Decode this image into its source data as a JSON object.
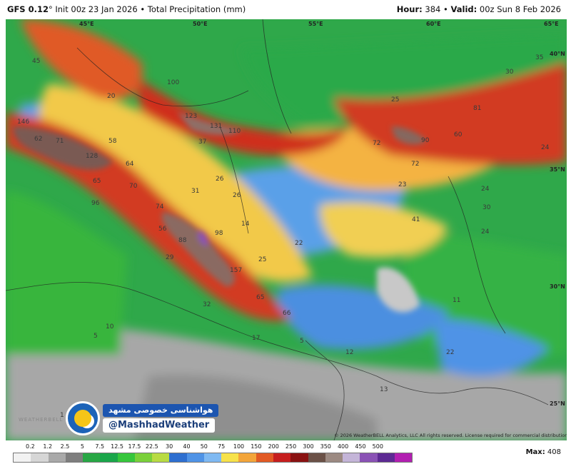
{
  "header": {
    "model": "GFS 0.12",
    "model_deg": "°",
    "init": "Init 00z 23 Jan 2026",
    "sep": "•",
    "product": "Total Precipitation (mm)",
    "hour_label": "Hour:",
    "hour_value": "384",
    "valid_label": "Valid:",
    "valid_value": "00z Sun 8 Feb 2026"
  },
  "coords": {
    "lon45": "45°E",
    "lon50": "50°E",
    "lon55": "55°E",
    "lon60": "60°E",
    "lon65": "65°E",
    "lat40": "40°N",
    "lat35": "35°N",
    "lat30": "30°N",
    "lat25": "25°N"
  },
  "map_values": [
    {
      "v": "100"
    },
    {
      "v": "123"
    },
    {
      "v": "131"
    },
    {
      "v": "110"
    },
    {
      "v": "146"
    },
    {
      "v": "128"
    },
    {
      "v": "157"
    },
    {
      "v": "98"
    },
    {
      "v": "88"
    },
    {
      "v": "90"
    },
    {
      "v": "81"
    },
    {
      "v": "72"
    },
    {
      "v": "72"
    },
    {
      "v": "60"
    },
    {
      "v": "96"
    },
    {
      "v": "74"
    },
    {
      "v": "70"
    },
    {
      "v": "65"
    },
    {
      "v": "64"
    },
    {
      "v": "71"
    },
    {
      "v": "62"
    },
    {
      "v": "58"
    },
    {
      "v": "65"
    },
    {
      "v": "66"
    },
    {
      "v": "56"
    },
    {
      "v": "45"
    },
    {
      "v": "41"
    },
    {
      "v": "30"
    },
    {
      "v": "24"
    },
    {
      "v": "24"
    },
    {
      "v": "24"
    },
    {
      "v": "23"
    },
    {
      "v": "26"
    },
    {
      "v": "26"
    },
    {
      "v": "31"
    },
    {
      "v": "25"
    },
    {
      "v": "29"
    },
    {
      "v": "20"
    },
    {
      "v": "14"
    },
    {
      "v": "22"
    },
    {
      "v": "32"
    },
    {
      "v": "17"
    },
    {
      "v": "5"
    },
    {
      "v": "12"
    },
    {
      "v": "13"
    },
    {
      "v": "22"
    },
    {
      "v": "11"
    },
    {
      "v": "10"
    },
    {
      "v": "5"
    },
    {
      "v": "1"
    },
    {
      "v": "37"
    },
    {
      "v": "30"
    },
    {
      "v": "35"
    },
    {
      "v": "25"
    }
  ],
  "copyright": "© 2026 WeatherBELL Analytics, LLC  All rights reserved. License required for commercial distribution.",
  "watermark": {
    "persian": "هواشناسی خصوصی مشهد",
    "handle": "@MashhadWeather",
    "logo_icon": "sun-cloud-icon",
    "brand_faint": "WEATHERBELL"
  },
  "colorbar": {
    "labels": [
      "0.2",
      "1.2",
      "2.5",
      "5",
      "7.5",
      "12.5",
      "17.5",
      "22.5",
      "30",
      "40",
      "50",
      "75",
      "100",
      "150",
      "200",
      "250",
      "300",
      "350",
      "400",
      "450",
      "500"
    ],
    "colors": [
      "#f2f2f2",
      "#d6d6d6",
      "#a9a9a9",
      "#7e7e7e",
      "#28a745",
      "#1aa64a",
      "#36c63c",
      "#7ad03a",
      "#b8db43",
      "#2e6fd0",
      "#4f93e6",
      "#7fb9f2",
      "#f7e24a",
      "#f3a53a",
      "#e25a24",
      "#c61e1e",
      "#8a1212",
      "#6b5147",
      "#9c8a82",
      "#c4b5d8",
      "#8a52b5",
      "#5d2a93",
      "#b21fb1"
    ]
  },
  "max_label": "Max:",
  "max_value": "408",
  "colors": {
    "heavy": "#c61e1e",
    "moderate": "#f3a53a",
    "light": "#28a745",
    "dry": "#8a8a8a",
    "blue": "#3f86df"
  }
}
